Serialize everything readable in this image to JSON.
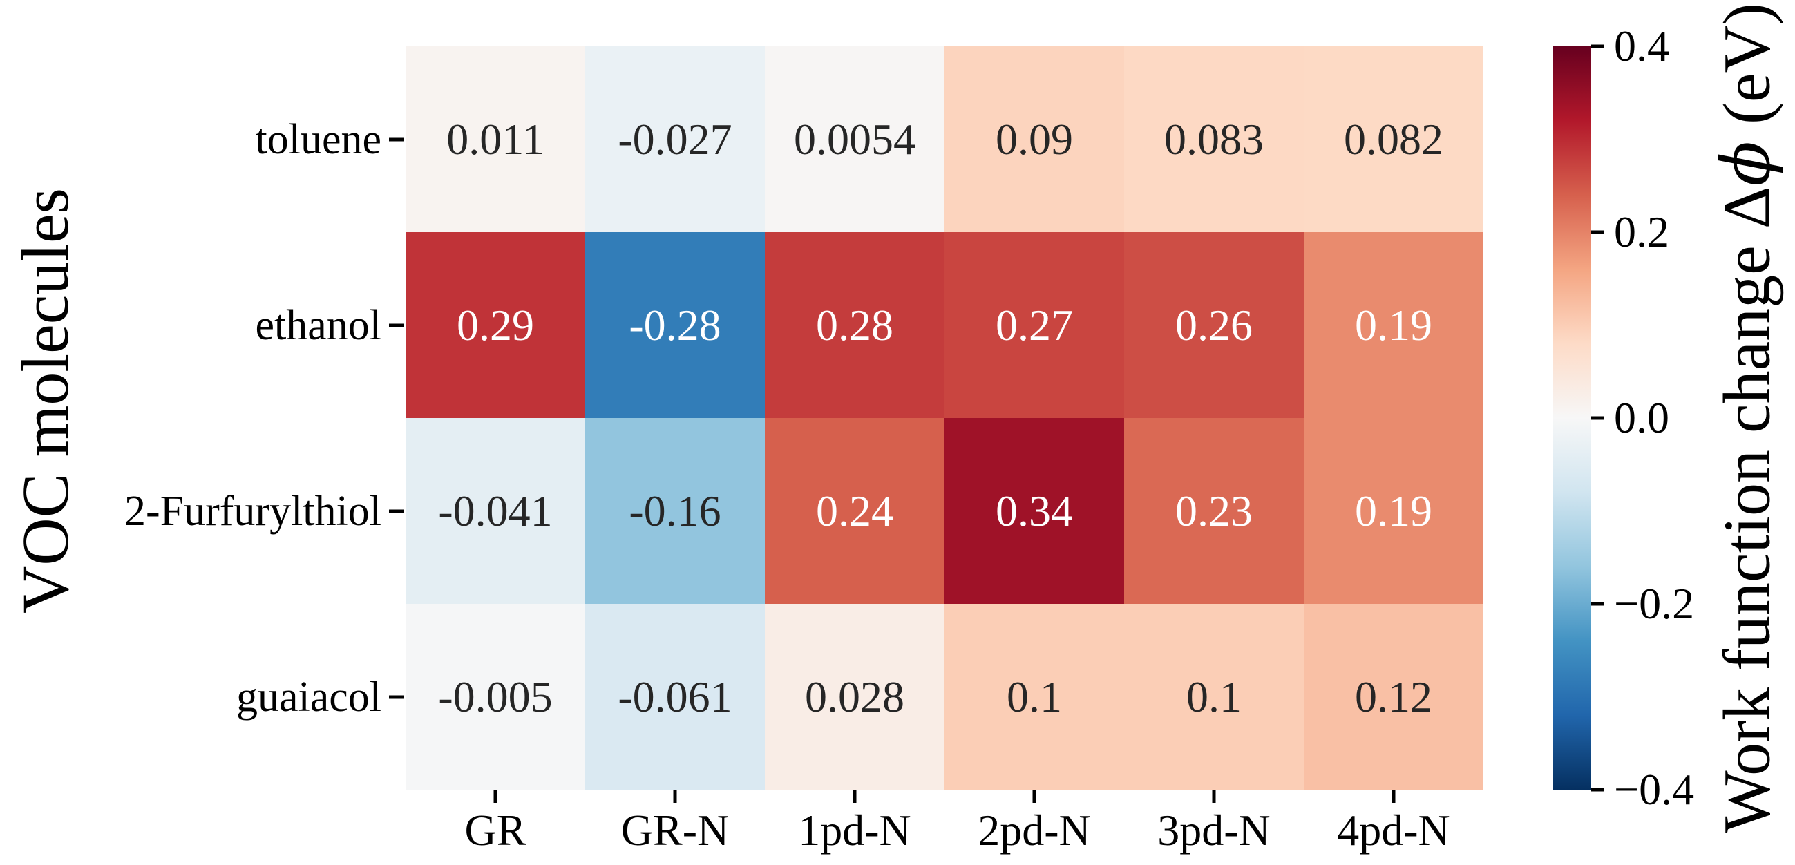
{
  "figure": {
    "background": "#ffffff",
    "axis_text_color": "#000000"
  },
  "chart_data": {
    "type": "heatmap",
    "title": "",
    "xlabel": "",
    "ylabel": "VOC molecules",
    "colorbar_label": "Work function change Δϕ (eV)",
    "colorbar_label_parts": {
      "pre": "Work function change ",
      "delta": "Δ",
      "phi": "ϕ",
      "post": " (eV)"
    },
    "rows": [
      "toluene",
      "ethanol",
      "2-Furfurylthiol",
      "guaiacol"
    ],
    "columns": [
      "GR",
      "GR-N",
      "1pd-N",
      "2pd-N",
      "3pd-N",
      "4pd-N"
    ],
    "values": [
      [
        0.011,
        -0.027,
        0.0054,
        0.09,
        0.083,
        0.082
      ],
      [
        0.29,
        -0.28,
        0.28,
        0.27,
        0.26,
        0.19
      ],
      [
        -0.041,
        -0.16,
        0.24,
        0.34,
        0.23,
        0.19
      ],
      [
        -0.005,
        -0.061,
        0.028,
        0.1,
        0.1,
        0.12
      ]
    ],
    "annotations": [
      [
        "0.011",
        "-0.027",
        "0.0054",
        "0.09",
        "0.083",
        "0.082"
      ],
      [
        "0.29",
        "-0.28",
        "0.28",
        "0.27",
        "0.26",
        "0.19"
      ],
      [
        "-0.041",
        "-0.16",
        "0.24",
        "0.34",
        "0.23",
        "0.19"
      ],
      [
        "-0.005",
        "-0.061",
        "0.028",
        "0.1",
        "0.1",
        "0.12"
      ]
    ],
    "vmin": -0.4,
    "vmax": 0.4,
    "colormap": "RdBu_r",
    "colormap_anchors_low_to_high": [
      "#053061",
      "#2166ac",
      "#4393c3",
      "#92c5de",
      "#d1e5f0",
      "#f7f7f7",
      "#fddbc7",
      "#f4a582",
      "#d6604d",
      "#b2182b",
      "#67001f"
    ],
    "colorbar_ticks": [
      {
        "label": "0.4",
        "value": 0.4
      },
      {
        "label": "0.2",
        "value": 0.2
      },
      {
        "label": "0.0",
        "value": 0.0
      },
      {
        "label": "−0.2",
        "value": -0.2
      },
      {
        "label": "−0.4",
        "value": -0.4
      }
    ],
    "annotation_text_dark": "#262626",
    "annotation_text_light": "#ffffff",
    "luminance_threshold": 0.408,
    "grid": false,
    "legend_position": "right-colorbar"
  }
}
